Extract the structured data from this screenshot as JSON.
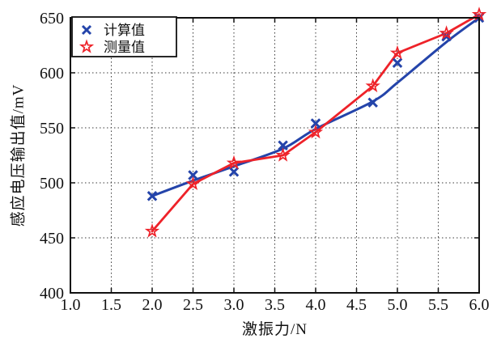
{
  "figure": {
    "background": "#ffffff",
    "border_color": "#111111",
    "grid_color": "#3a3a3a"
  },
  "chart_data": {
    "type": "line",
    "title": "",
    "xlabel": "激振力/N",
    "ylabel": "感应电压输出值/mV",
    "xlim": [
      1.0,
      6.0
    ],
    "ylim": [
      400,
      650
    ],
    "xtick_labels": [
      "1.0",
      "1.5",
      "2.0",
      "2.5",
      "3.0",
      "3.5",
      "4.0",
      "4.5",
      "5.0",
      "5.5",
      "6.0"
    ],
    "ytick_labels": [
      "400",
      "450",
      "500",
      "550",
      "600",
      "650"
    ],
    "grid": "dotted",
    "legend_position": "top-left",
    "x": [
      2.0,
      2.5,
      3.0,
      3.6,
      4.0,
      4.7,
      5.0,
      5.6,
      6.0
    ],
    "series": [
      {
        "name": "计算值",
        "marker": "x",
        "color": "#2444aa",
        "line_style": "smooth-fit",
        "values": [
          488,
          507,
          510,
          534,
          554,
          573,
          609,
          633,
          650
        ],
        "fit_line": [
          488,
          502,
          515,
          531,
          549,
          574,
          591,
          628,
          650
        ]
      },
      {
        "name": "测量值",
        "marker": "star",
        "color": "#ee2229",
        "line_style": "straight",
        "values": [
          456,
          499,
          518,
          525,
          546,
          588,
          618,
          636,
          653
        ]
      }
    ]
  }
}
